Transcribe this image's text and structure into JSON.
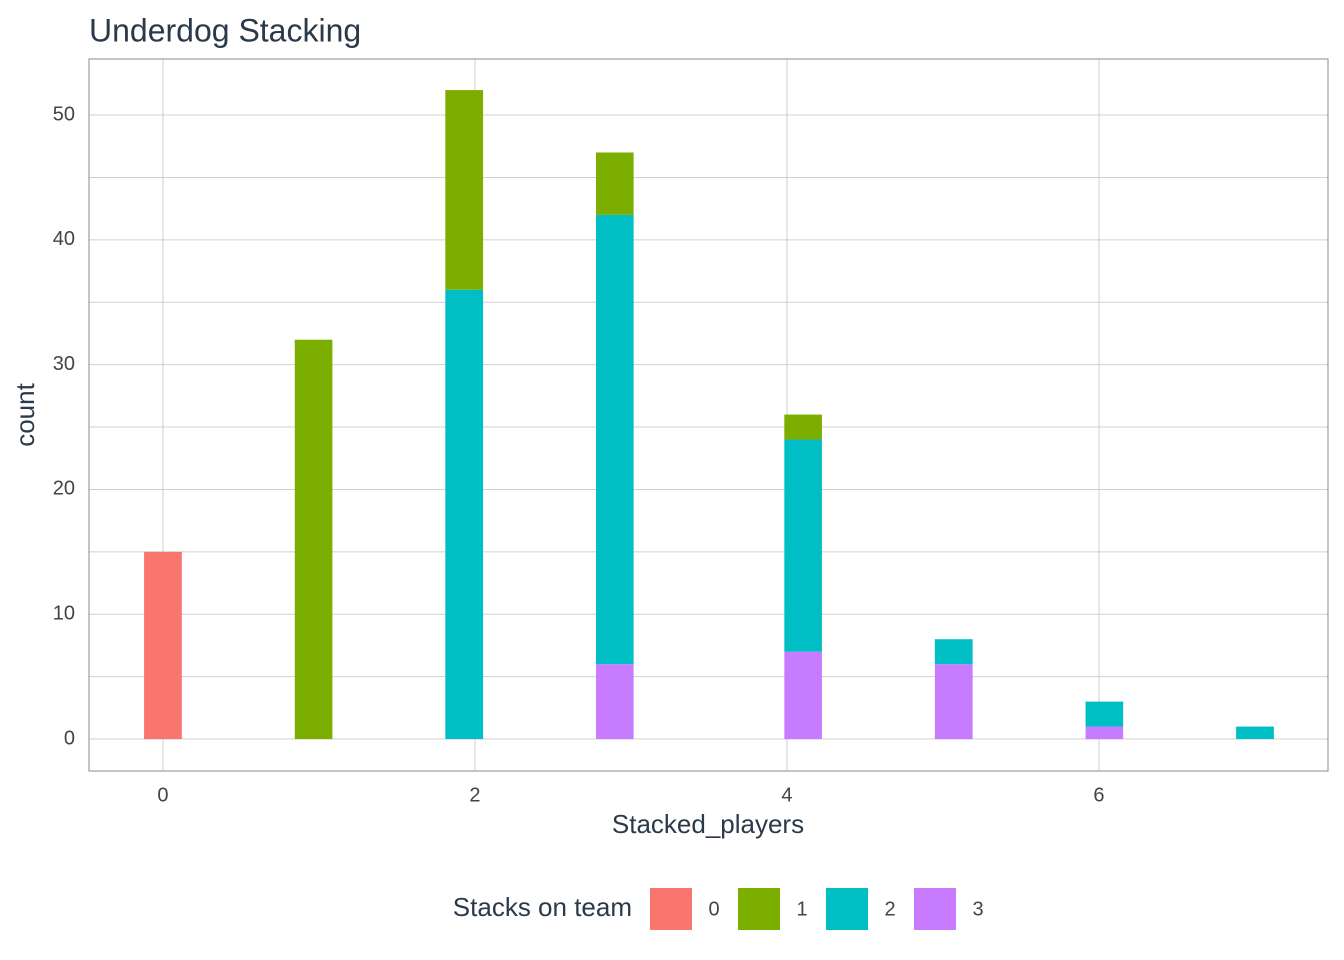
{
  "chart_data": {
    "type": "histogram",
    "title": "Underdog Stacking",
    "x_label": "Stacked_players",
    "y_label": "count",
    "legend_title": "Stacks on team",
    "legend_position": "bottom",
    "bins": [
      -0.121,
      0.121,
      0.362,
      0.603,
      0.845,
      1.086,
      1.328,
      1.569,
      1.81,
      2.052,
      2.293,
      2.534,
      2.776,
      3.017,
      3.259,
      3.5,
      3.741,
      3.983,
      4.224,
      4.466,
      4.707,
      4.948,
      5.19,
      5.431,
      5.672,
      5.914,
      6.155,
      6.397,
      6.638,
      6.879,
      7.121
    ],
    "series": [
      {
        "name": "0",
        "color": "#f8766d",
        "values": [
          15,
          0,
          0,
          0,
          0,
          0,
          0,
          0,
          0,
          0,
          0,
          0,
          0,
          0,
          0,
          0,
          0,
          0,
          0,
          0,
          0,
          0,
          0,
          0,
          0,
          0,
          0,
          0,
          0,
          0
        ]
      },
      {
        "name": "1",
        "color": "#7cae00",
        "values": [
          0,
          0,
          0,
          0,
          32,
          0,
          0,
          0,
          16,
          0,
          0,
          0,
          5,
          0,
          0,
          0,
          0,
          2,
          0,
          0,
          0,
          0,
          0,
          0,
          0,
          0,
          0,
          0,
          0,
          0
        ]
      },
      {
        "name": "2",
        "color": "#00bfc4",
        "values": [
          0,
          0,
          0,
          0,
          0,
          0,
          0,
          0,
          36,
          0,
          0,
          0,
          36,
          0,
          0,
          0,
          0,
          17,
          0,
          0,
          0,
          2,
          0,
          0,
          0,
          2,
          0,
          0,
          0,
          1
        ]
      },
      {
        "name": "3",
        "color": "#c77cff",
        "values": [
          0,
          0,
          0,
          0,
          0,
          0,
          0,
          0,
          0,
          0,
          0,
          0,
          6,
          0,
          0,
          0,
          0,
          7,
          0,
          0,
          0,
          6,
          0,
          0,
          0,
          1,
          0,
          0,
          0,
          0
        ]
      }
    ],
    "stack_order": "reverse",
    "xlim": [
      -0.474,
      7.468
    ],
    "ylim": [
      -2.56,
      54.49
    ],
    "xticks": [
      0,
      2,
      4,
      6
    ],
    "yticks": [
      0,
      10,
      20,
      30,
      40,
      50
    ],
    "yminor": [
      5,
      15,
      25,
      35,
      45
    ],
    "grid": true
  }
}
